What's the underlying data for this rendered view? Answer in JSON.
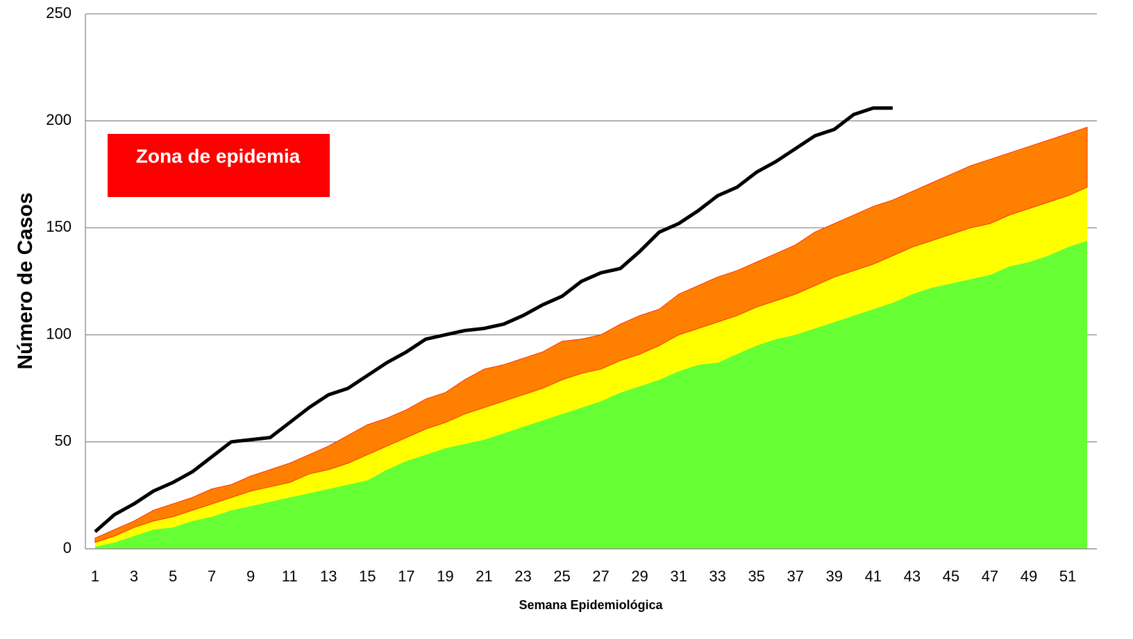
{
  "chart_data": {
    "type": "stacked_area_line",
    "x_label": "Semana Epidemiológica",
    "y_label": "Número de Casos",
    "annotation": "Zona de epidemia",
    "annotation_color": "#ff0000",
    "categories": [
      1,
      null,
      3,
      null,
      5,
      null,
      7,
      null,
      9,
      null,
      11,
      null,
      13,
      null,
      15,
      null,
      17,
      null,
      19,
      null,
      21,
      null,
      23,
      null,
      25,
      null,
      27,
      null,
      29,
      null,
      31,
      null,
      33,
      null,
      35,
      null,
      37,
      null,
      39,
      null,
      41,
      null,
      43,
      null,
      45,
      null,
      47,
      null,
      49,
      null,
      51,
      null
    ],
    "series": [
      {
        "color": "#66ff33",
        "kind": "area",
        "values": [
          1,
          3,
          6,
          9,
          10,
          13,
          15,
          18,
          20,
          22,
          24,
          26,
          28,
          30,
          32,
          37,
          41,
          44,
          47,
          49,
          51,
          54,
          57,
          60,
          63,
          66,
          69,
          73,
          76,
          79,
          83,
          86,
          87,
          91,
          95,
          98,
          100,
          103,
          106,
          109,
          112,
          115,
          119,
          122,
          124,
          126,
          128,
          132,
          134,
          137,
          141,
          144
        ]
      },
      {
        "color": "#ffff00",
        "kind": "area",
        "values": [
          2,
          3,
          4,
          4,
          5,
          5,
          6,
          6,
          7,
          7,
          7,
          9,
          9,
          10,
          12,
          11,
          11,
          12,
          12,
          14,
          15,
          15,
          15,
          15,
          16,
          16,
          15,
          15,
          15,
          16,
          17,
          17,
          19,
          18,
          18,
          18,
          19,
          20,
          21,
          21,
          21,
          22,
          22,
          22,
          23,
          24,
          24,
          24,
          25,
          25,
          24,
          25
        ]
      },
      {
        "color": "#ff8000",
        "kind": "area",
        "values": [
          2,
          3,
          3,
          5,
          6,
          6,
          7,
          6,
          7,
          8,
          9,
          9,
          11,
          13,
          14,
          13,
          13,
          14,
          14,
          16,
          18,
          17,
          17,
          17,
          18,
          16,
          16,
          17,
          18,
          17,
          19,
          20,
          21,
          21,
          21,
          22,
          23,
          25,
          25,
          26,
          27,
          26,
          26,
          27,
          28,
          29,
          30,
          29,
          29,
          29,
          29,
          28
        ]
      },
      {
        "color": "#000000",
        "kind": "line",
        "values": [
          8,
          16,
          21,
          27,
          31,
          36,
          43,
          50,
          51,
          52,
          59,
          66,
          72,
          75,
          81,
          87,
          92,
          98,
          100,
          102,
          103,
          105,
          109,
          114,
          118,
          125,
          129,
          131,
          139,
          148,
          152,
          158,
          165,
          169,
          176,
          181,
          187,
          193,
          196,
          203,
          206,
          206,
          null,
          null,
          null,
          null,
          null,
          null,
          null,
          null,
          null,
          null
        ]
      }
    ],
    "ylim": [
      0,
      250
    ],
    "yticks": [
      0,
      50,
      100,
      150,
      200,
      250
    ],
    "grid": true
  }
}
